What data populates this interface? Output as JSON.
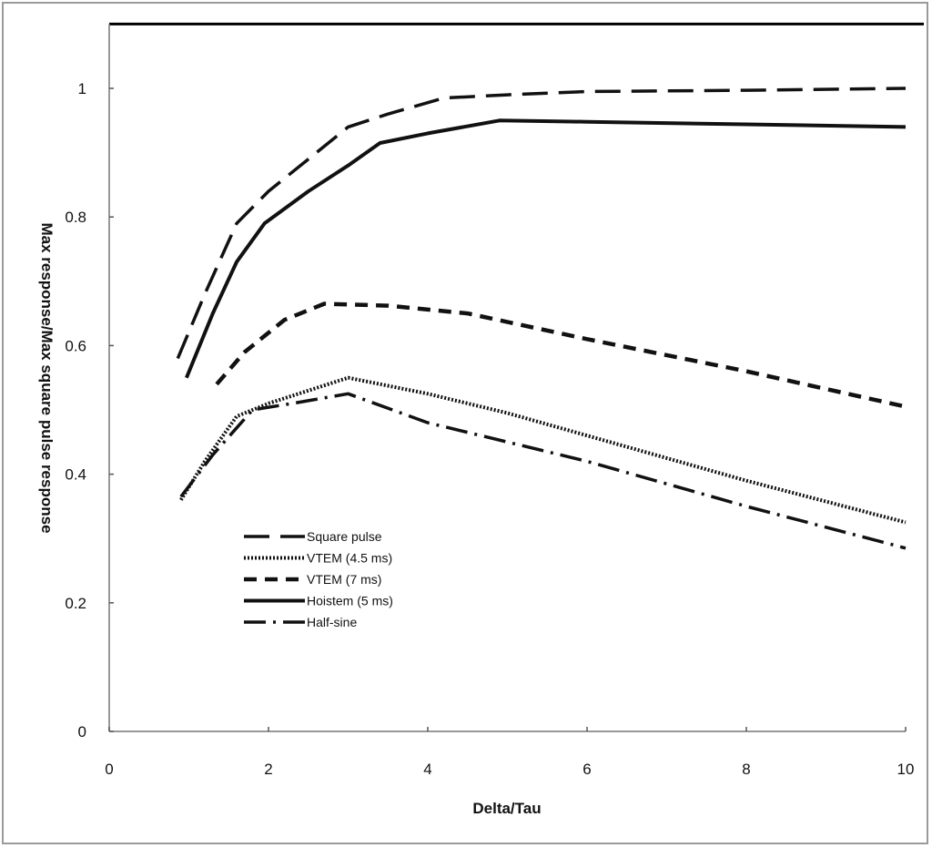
{
  "chart_data": {
    "type": "line",
    "title": "",
    "xlabel": "Delta/Tau",
    "ylabel": "Max response/Max square pulse response",
    "xlim": [
      0,
      10
    ],
    "ylim": [
      0,
      1.1
    ],
    "xticks": [
      0,
      2,
      4,
      6,
      8,
      10
    ],
    "yticks": [
      0,
      0.2,
      0.4,
      0.6,
      0.8,
      1
    ],
    "xtick_labels": [
      "0",
      "2",
      "4",
      "6",
      "8",
      "10"
    ],
    "ytick_labels": [
      "0",
      "0.2",
      "0.4",
      "0.6",
      "0.8",
      "1"
    ],
    "grid": false,
    "legend_placement": "bottom-left",
    "colors": {
      "lines": "#111111"
    },
    "series": [
      {
        "name": "Square pulse",
        "style": "long-dash",
        "x": [
          0.86,
          1.2,
          1.6,
          2.0,
          2.5,
          3.0,
          3.5,
          4.2,
          5,
          6,
          8,
          10
        ],
        "y": [
          0.58,
          0.68,
          0.79,
          0.84,
          0.89,
          0.94,
          0.96,
          0.985,
          0.99,
          0.995,
          0.997,
          1.0
        ]
      },
      {
        "name": "VTEM (4.5 ms)",
        "style": "dotted",
        "x": [
          0.9,
          1.2,
          1.6,
          2.0,
          2.5,
          3.0,
          4.0,
          5,
          6,
          8,
          10
        ],
        "y": [
          0.36,
          0.42,
          0.49,
          0.51,
          0.53,
          0.55,
          0.525,
          0.495,
          0.46,
          0.39,
          0.325
        ]
      },
      {
        "name": "VTEM (7 ms)",
        "style": "dashed",
        "x": [
          1.35,
          1.7,
          2.2,
          2.7,
          3.5,
          4.5,
          6,
          8,
          10
        ],
        "y": [
          0.54,
          0.59,
          0.64,
          0.665,
          0.662,
          0.65,
          0.61,
          0.56,
          0.505
        ]
      },
      {
        "name": "Hoistem (5 ms)",
        "style": "solid",
        "x": [
          0.97,
          1.3,
          1.6,
          1.95,
          2.5,
          3.0,
          3.4,
          4.0,
          4.9,
          6,
          8,
          10
        ],
        "y": [
          0.55,
          0.65,
          0.73,
          0.79,
          0.84,
          0.88,
          0.915,
          0.93,
          0.95,
          0.948,
          0.944,
          0.94
        ]
      },
      {
        "name": "Half-sine",
        "style": "dash-dot",
        "x": [
          0.9,
          1.3,
          1.8,
          2.3,
          3.0,
          4.0,
          5,
          6,
          8,
          10
        ],
        "y": [
          0.365,
          0.43,
          0.5,
          0.51,
          0.525,
          0.48,
          0.45,
          0.42,
          0.35,
          0.285
        ]
      }
    ]
  }
}
